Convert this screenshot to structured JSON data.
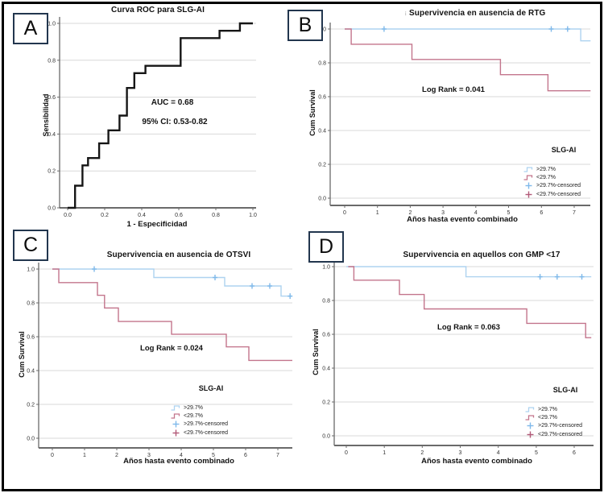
{
  "figure": {
    "background": "#ffffff",
    "border_color": "#000000"
  },
  "colors": {
    "roc_line": "#161616",
    "blue_line": "#aed3f0",
    "blue_censor": "#7fb9ea",
    "red_line": "#c3758c",
    "red_censor": "#b25a78",
    "gridline": "#d8d8d8",
    "axis": "#6a6a6a",
    "tick_text": "#333333",
    "label_box_border": "#22364e"
  },
  "chart_data": [
    {
      "id": "A",
      "panel_label": "A",
      "type": "line",
      "subtype": "roc_step",
      "title": "Curva ROC para SLG-AI",
      "xlabel": "1 - Especificidad",
      "ylabel": "Sensibilidad",
      "xlim": [
        0,
        1
      ],
      "ylim": [
        0,
        1
      ],
      "xticks": [
        0,
        0.2,
        0.4,
        0.6,
        0.8,
        1.0
      ],
      "xtick_labels": [
        "0.0",
        "0.2",
        "0.4",
        "0.6",
        "0.8",
        "1.0"
      ],
      "yticks": [
        0,
        0.2,
        0.4,
        0.6,
        0.8,
        1.0
      ],
      "ytick_labels": [
        "0.0",
        "0.2",
        "0.4",
        "0.6",
        "0.8",
        "1.0"
      ],
      "grid": "horizontal",
      "annotations": [
        {
          "text": "AUC = 0.68"
        },
        {
          "text": "95% CI: 0.53-0.82"
        }
      ],
      "auc": 0.68,
      "ci_95": "0.53-0.82",
      "series": [
        {
          "name": "ROC curve",
          "color_key": "roc_line",
          "width": 2.4,
          "points": [
            [
              0,
              0
            ],
            [
              0.04,
              0
            ],
            [
              0.04,
              0.12
            ],
            [
              0.08,
              0.12
            ],
            [
              0.08,
              0.23
            ],
            [
              0.11,
              0.23
            ],
            [
              0.11,
              0.27
            ],
            [
              0.17,
              0.27
            ],
            [
              0.17,
              0.35
            ],
            [
              0.22,
              0.35
            ],
            [
              0.22,
              0.42
            ],
            [
              0.28,
              0.42
            ],
            [
              0.28,
              0.5
            ],
            [
              0.32,
              0.5
            ],
            [
              0.32,
              0.65
            ],
            [
              0.36,
              0.65
            ],
            [
              0.36,
              0.73
            ],
            [
              0.42,
              0.73
            ],
            [
              0.42,
              0.77
            ],
            [
              0.61,
              0.77
            ],
            [
              0.61,
              0.92
            ],
            [
              0.82,
              0.92
            ],
            [
              0.82,
              0.96
            ],
            [
              0.93,
              0.96
            ],
            [
              0.93,
              1.0
            ],
            [
              1.0,
              1.0
            ]
          ]
        }
      ]
    },
    {
      "id": "B",
      "panel_label": "B",
      "type": "line",
      "subtype": "km_step",
      "title": "Supervivencia en ausencia de RTG",
      "title_prefix": "¡",
      "xlabel": "Años hasta evento combinado",
      "ylabel": "Cum Survival",
      "xlim": [
        -0.45,
        7.5
      ],
      "ylim": [
        0,
        1
      ],
      "xticks": [
        0,
        1,
        2,
        3,
        4,
        5,
        6,
        7
      ],
      "xtick_labels": [
        "0",
        "1",
        "2",
        "3",
        "4",
        "5",
        "6",
        "7"
      ],
      "yticks": [
        0,
        0.2,
        0.4,
        0.6,
        0.8,
        1.0
      ],
      "ytick_labels": [
        "0.0",
        "0.2",
        "0.4",
        "0.6",
        "0.8",
        "1.0"
      ],
      "grid": "horizontal",
      "annotation": "Log Rank = 0.041",
      "log_rank_p": 0.041,
      "legend": {
        "title": "SLG-AI",
        "entries": [
          {
            "label": ">29.7%",
            "glyph": "step",
            "color_key": "blue_line"
          },
          {
            "label": "<29.7%",
            "glyph": "step",
            "color_key": "red_line"
          },
          {
            "label": ">29.7%-censored",
            "glyph": "plus",
            "color_key": "blue_censor"
          },
          {
            "label": "<29.7%-censored",
            "glyph": "plus",
            "color_key": "red_censor"
          }
        ]
      },
      "series": [
        {
          "name": ">29.7%",
          "color_key": "blue_line",
          "censor_color_key": "blue_censor",
          "points": [
            [
              0,
              1
            ],
            [
              7.2,
              1
            ],
            [
              7.2,
              0.93
            ],
            [
              7.5,
              0.93
            ]
          ],
          "censors": [
            [
              1.2,
              1
            ],
            [
              6.3,
              1
            ],
            [
              6.8,
              1
            ]
          ]
        },
        {
          "name": "<29.7%",
          "color_key": "red_line",
          "censor_color_key": "red_censor",
          "points": [
            [
              0,
              1
            ],
            [
              0.2,
              1
            ],
            [
              0.2,
              0.91
            ],
            [
              2.05,
              0.91
            ],
            [
              2.05,
              0.82
            ],
            [
              4.75,
              0.82
            ],
            [
              4.75,
              0.73
            ],
            [
              6.2,
              0.73
            ],
            [
              6.2,
              0.635
            ],
            [
              7.5,
              0.635
            ]
          ],
          "censors": []
        }
      ]
    },
    {
      "id": "C",
      "panel_label": "C",
      "type": "line",
      "subtype": "km_step",
      "title": "Supervivencia en ausencia de OTSVI",
      "xlabel": "Años hasta evento combinado",
      "ylabel": "Cum Survival",
      "xlim": [
        -0.45,
        7.45
      ],
      "ylim": [
        0,
        1
      ],
      "xticks": [
        0,
        1,
        2,
        3,
        4,
        5,
        6,
        7
      ],
      "xtick_labels": [
        "0",
        "1",
        "2",
        "3",
        "4",
        "5",
        "6",
        "7"
      ],
      "yticks": [
        0,
        0.2,
        0.4,
        0.6,
        0.8,
        1.0
      ],
      "ytick_labels": [
        "0.0",
        "0.2",
        "0.4",
        "0.6",
        "0.8",
        "1.0"
      ],
      "grid": "horizontal",
      "annotation": "Log Rank = 0.024",
      "log_rank_p": 0.024,
      "legend": {
        "title": "SLG-AI",
        "entries": [
          {
            "label": ">29.7%",
            "glyph": "step",
            "color_key": "blue_line"
          },
          {
            "label": "<29.7%",
            "glyph": "step",
            "color_key": "red_line"
          },
          {
            "label": ">29.7%-censored",
            "glyph": "plus",
            "color_key": "blue_censor"
          },
          {
            "label": "<29.7%-censored",
            "glyph": "plus",
            "color_key": "red_censor"
          }
        ]
      },
      "series": [
        {
          "name": ">29.7%",
          "color_key": "blue_line",
          "censor_color_key": "blue_censor",
          "points": [
            [
              0,
              1
            ],
            [
              3.15,
              1
            ],
            [
              3.15,
              0.95
            ],
            [
              5.35,
              0.95
            ],
            [
              5.35,
              0.9
            ],
            [
              7.1,
              0.9
            ],
            [
              7.1,
              0.84
            ],
            [
              7.45,
              0.84
            ]
          ],
          "censors": [
            [
              1.3,
              1
            ],
            [
              5.05,
              0.95
            ],
            [
              6.2,
              0.9
            ],
            [
              6.75,
              0.9
            ],
            [
              7.38,
              0.84
            ]
          ]
        },
        {
          "name": "<29.7%",
          "color_key": "red_line",
          "censor_color_key": "red_censor",
          "points": [
            [
              0,
              1
            ],
            [
              0.2,
              1
            ],
            [
              0.2,
              0.92
            ],
            [
              1.4,
              0.92
            ],
            [
              1.4,
              0.845
            ],
            [
              1.62,
              0.845
            ],
            [
              1.62,
              0.77
            ],
            [
              2.05,
              0.77
            ],
            [
              2.05,
              0.69
            ],
            [
              3.7,
              0.69
            ],
            [
              3.7,
              0.615
            ],
            [
              5.4,
              0.615
            ],
            [
              5.4,
              0.54
            ],
            [
              6.1,
              0.54
            ],
            [
              6.1,
              0.46
            ],
            [
              7.45,
              0.46
            ]
          ],
          "censors": []
        }
      ]
    },
    {
      "id": "D",
      "panel_label": "D",
      "type": "line",
      "subtype": "km_step",
      "title": "Supervivencia en aquellos con GMP <17",
      "xlabel": "Años hasta evento combinado",
      "ylabel": "Cum Survival",
      "xlim": [
        -0.35,
        6.5
      ],
      "ylim": [
        0,
        1
      ],
      "xticks": [
        0,
        1,
        2,
        3,
        4,
        5,
        6
      ],
      "xtick_labels": [
        "0",
        "1",
        "2",
        "3",
        "4",
        "5",
        "6"
      ],
      "yticks": [
        0,
        0.2,
        0.4,
        0.6,
        0.8,
        1.0
      ],
      "ytick_labels": [
        "0.0",
        "0.2",
        "0.4",
        "0.6",
        "0.8",
        "1.0"
      ],
      "grid": "horizontal",
      "annotation": "Log Rank = 0.063",
      "log_rank_p": 0.063,
      "legend": {
        "title": "SLG-AI",
        "entries": [
          {
            "label": ">29.7%",
            "glyph": "step",
            "color_key": "blue_line"
          },
          {
            "label": "<29.7%",
            "glyph": "step",
            "color_key": "red_line"
          },
          {
            "label": ">29.7%-censored",
            "glyph": "plus",
            "color_key": "blue_censor"
          },
          {
            "label": "<29.7%-censored",
            "glyph": "plus",
            "color_key": "red_censor"
          }
        ]
      },
      "series": [
        {
          "name": ">29.7%",
          "color_key": "blue_line",
          "censor_color_key": "blue_censor",
          "points": [
            [
              0,
              1
            ],
            [
              3.15,
              1
            ],
            [
              3.15,
              0.94
            ],
            [
              6.45,
              0.94
            ]
          ],
          "censors": [
            [
              5.1,
              0.94
            ],
            [
              5.55,
              0.94
            ],
            [
              6.2,
              0.94
            ]
          ]
        },
        {
          "name": "<29.7%",
          "color_key": "red_line",
          "censor_color_key": "red_censor",
          "points": [
            [
              0.05,
              1
            ],
            [
              0.2,
              1
            ],
            [
              0.2,
              0.92
            ],
            [
              1.4,
              0.92
            ],
            [
              1.4,
              0.835
            ],
            [
              2.05,
              0.835
            ],
            [
              2.05,
              0.75
            ],
            [
              4.75,
              0.75
            ],
            [
              4.75,
              0.665
            ],
            [
              6.3,
              0.665
            ],
            [
              6.3,
              0.58
            ],
            [
              6.45,
              0.58
            ]
          ],
          "censors": []
        }
      ]
    }
  ]
}
